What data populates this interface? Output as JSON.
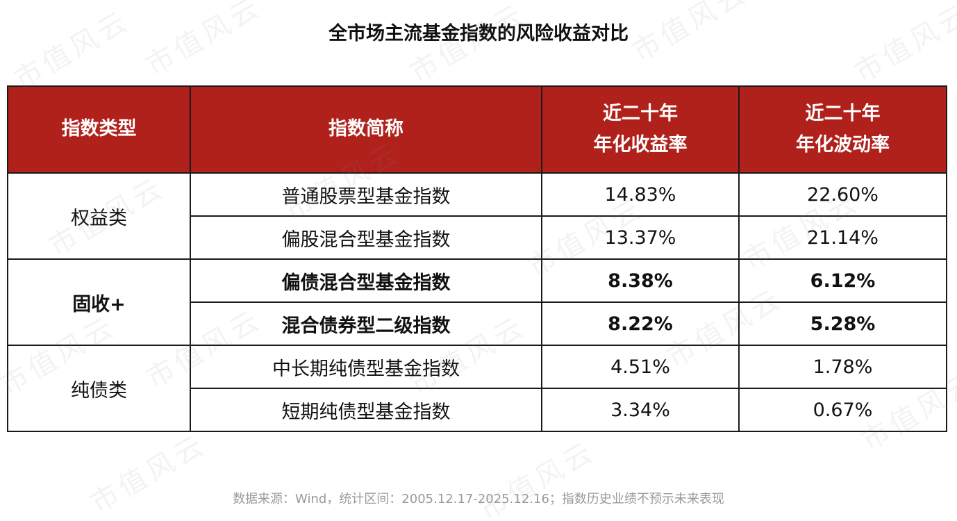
{
  "title": "全市场主流基金指数的风险收益对比",
  "watermark_text": "市值风云",
  "colors": {
    "header_bg": "#b0211c",
    "header_text": "#ffffff",
    "border": "#1a1a1a",
    "footer_text": "#9a9a9a"
  },
  "table": {
    "headers": {
      "type": "指数类型",
      "name": "指数简称",
      "return_line1": "近二十年",
      "return_line2": "年化收益率",
      "vol_line1": "近二十年",
      "vol_line2": "年化波动率"
    },
    "groups": [
      {
        "category": "权益类",
        "bold": false,
        "rows": [
          {
            "name": "普通股票型基金指数",
            "return": "14.83%",
            "volatility": "22.60%"
          },
          {
            "name": "偏股混合型基金指数",
            "return": "13.37%",
            "volatility": "21.14%"
          }
        ]
      },
      {
        "category": "固收+",
        "bold": true,
        "rows": [
          {
            "name": "偏债混合型基金指数",
            "return": "8.38%",
            "volatility": "6.12%"
          },
          {
            "name": "混合债券型二级指数",
            "return": "8.22%",
            "volatility": "5.28%"
          }
        ]
      },
      {
        "category": "纯债类",
        "bold": false,
        "rows": [
          {
            "name": "中长期纯债型基金指数",
            "return": "4.51%",
            "volatility": "1.78%"
          },
          {
            "name": "短期纯债型基金指数",
            "return": "3.34%",
            "volatility": "0.67%"
          }
        ]
      }
    ]
  },
  "footer": "数据来源：Wind，统计区间：2005.12.17-2025.12.16；指数历史业绩不预示未来表现"
}
